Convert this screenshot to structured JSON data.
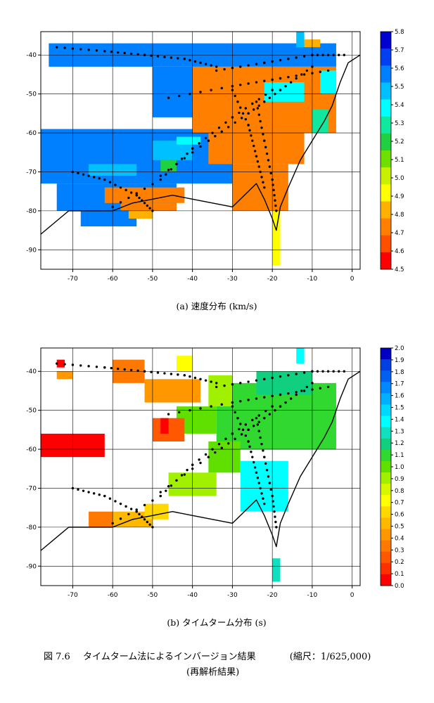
{
  "chart_data": [
    {
      "type": "heatmap",
      "id": "a",
      "caption": "(a)  速度分布  (km/s)",
      "x_ticks": [
        -70,
        -60,
        -50,
        -40,
        -30,
        -20,
        -10,
        0
      ],
      "y_ticks": [
        -40,
        -50,
        -60,
        -70,
        -80,
        -90
      ],
      "xlim": [
        -78,
        2
      ],
      "ylim": [
        -95,
        -34
      ],
      "grid": true,
      "colorbar": {
        "values": [
          4.5,
          4.6,
          4.7,
          4.8,
          4.9,
          5.0,
          5.1,
          5.2,
          5.3,
          5.4,
          5.5,
          5.6,
          5.7,
          5.8
        ],
        "labels": [
          "5.8",
          "5.7",
          "5.6",
          "5.5",
          "5.4",
          "5.3",
          "5.2",
          "5.1",
          "5.0",
          "4.9",
          "4.8",
          "4.7",
          "4.6",
          "4.5"
        ],
        "colors": [
          "#ff0000",
          "#ff5000",
          "#ff8000",
          "#ffb000",
          "#ffff00",
          "#c8f000",
          "#6ee000",
          "#20d040",
          "#10e8a0",
          "#00ffff",
          "#00c0ff",
          "#0080ff",
          "#0040f0",
          "#0000d0"
        ]
      },
      "regions": [
        {
          "value": 5.6,
          "x0": -76,
          "x1": -4,
          "y0": -43,
          "y1": -37
        },
        {
          "value": 5.6,
          "x0": -50,
          "x1": -28,
          "y0": -56,
          "y1": -43
        },
        {
          "value": 5.6,
          "x0": -78,
          "x1": -30,
          "y0": -73,
          "y1": -59
        },
        {
          "value": 5.6,
          "x0": -74,
          "x1": -44,
          "y0": -80,
          "y1": -73
        },
        {
          "value": 5.6,
          "x0": -68,
          "x1": -54,
          "y0": -84,
          "y1": -80
        },
        {
          "value": 5.5,
          "x0": -66,
          "x1": -54,
          "y0": -71,
          "y1": -68
        },
        {
          "value": 5.5,
          "x0": -50,
          "x1": -40,
          "y0": -67,
          "y1": -62
        },
        {
          "value": 5.4,
          "x0": -44,
          "x1": -38,
          "y0": -63,
          "y1": -61
        },
        {
          "value": 5.2,
          "x0": -38,
          "x1": -34,
          "y0": -55,
          "y1": -51
        },
        {
          "value": 5.2,
          "x0": -48,
          "x1": -44,
          "y0": -70,
          "y1": -67
        },
        {
          "value": 4.7,
          "x0": -40,
          "x1": -4,
          "y0": -60,
          "y1": -43
        },
        {
          "value": 4.7,
          "x0": -36,
          "x1": -12,
          "y0": -68,
          "y1": -60
        },
        {
          "value": 4.7,
          "x0": -30,
          "x1": -16,
          "y0": -80,
          "y1": -68
        },
        {
          "value": 4.7,
          "x0": -62,
          "x1": -42,
          "y0": -78,
          "y1": -74
        },
        {
          "value": 4.7,
          "x0": -58,
          "x1": -44,
          "y0": -80,
          "y1": -78
        },
        {
          "value": 4.8,
          "x0": -56,
          "x1": -50,
          "y0": -82,
          "y1": -80
        },
        {
          "value": 5.4,
          "x0": -22,
          "x1": -12,
          "y0": -52,
          "y1": -47
        },
        {
          "value": 5.3,
          "x0": -10,
          "x1": -6,
          "y0": -60,
          "y1": -54
        },
        {
          "value": 5.4,
          "x0": -8,
          "x1": -4,
          "y0": -50,
          "y1": -44
        },
        {
          "value": 4.8,
          "x0": -12,
          "x1": -8,
          "y0": -38,
          "y1": -36
        },
        {
          "value": 5.5,
          "x0": -14,
          "x1": -12,
          "y0": -38,
          "y1": -34
        },
        {
          "value": 4.9,
          "x0": -20,
          "x1": -18,
          "y0": -94,
          "y1": -80
        }
      ]
    },
    {
      "type": "heatmap",
      "id": "b",
      "caption": "(b)  タイムターム分布  (s)",
      "x_ticks": [
        -70,
        -60,
        -50,
        -40,
        -30,
        -20,
        -10,
        0
      ],
      "y_ticks": [
        -40,
        -50,
        -60,
        -70,
        -80,
        -90
      ],
      "xlim": [
        -78,
        2
      ],
      "ylim": [
        -95,
        -34
      ],
      "grid": true,
      "colorbar": {
        "values": [
          0.0,
          0.1,
          0.2,
          0.3,
          0.4,
          0.5,
          0.6,
          0.7,
          0.8,
          0.9,
          1.0,
          1.1,
          1.2,
          1.3,
          1.4,
          1.5,
          1.6,
          1.7,
          1.8,
          1.9,
          2.0
        ],
        "labels": [
          "2.0",
          "1.9",
          "1.8",
          "1.7",
          "1.6",
          "1.5",
          "1.4",
          "1.3",
          "1.2",
          "1.1",
          "1.0",
          "0.9",
          "0.8",
          "0.7",
          "0.6",
          "0.5",
          "0.4",
          "0.3",
          "0.2",
          "0.1",
          "0.0"
        ],
        "colors": [
          "#ff0000",
          "#ff3000",
          "#ff5800",
          "#ff7800",
          "#ff9800",
          "#ffb800",
          "#ffd800",
          "#ffff00",
          "#d8f800",
          "#a0f000",
          "#60e000",
          "#30d830",
          "#10d080",
          "#10e0c0",
          "#00ffff",
          "#00d8ff",
          "#00b0ff",
          "#0088ff",
          "#0060f0",
          "#0040e0",
          "#0000c0"
        ]
      },
      "regions": [
        {
          "value": 1.1,
          "x0": -34,
          "x1": -4,
          "y0": -60,
          "y1": -43
        },
        {
          "value": 1.0,
          "x0": -44,
          "x1": -34,
          "y0": -56,
          "y1": -49
        },
        {
          "value": 0.9,
          "x0": -36,
          "x1": -30,
          "y0": -49,
          "y1": -41
        },
        {
          "value": 1.2,
          "x0": -24,
          "x1": -10,
          "y0": -46,
          "y1": -40
        },
        {
          "value": 1.4,
          "x0": -28,
          "x1": -16,
          "y0": -76,
          "y1": -63
        },
        {
          "value": 1.0,
          "x0": -36,
          "x1": -28,
          "y0": -66,
          "y1": -58
        },
        {
          "value": 0.9,
          "x0": -46,
          "x1": -34,
          "y0": -72,
          "y1": -66
        },
        {
          "value": 0.3,
          "x0": -60,
          "x1": -52,
          "y0": -43,
          "y1": -37
        },
        {
          "value": 0.4,
          "x0": -52,
          "x1": -38,
          "y0": -48,
          "y1": -42
        },
        {
          "value": 0.0,
          "x0": -78,
          "x1": -62,
          "y0": -62,
          "y1": -56
        },
        {
          "value": 0.2,
          "x0": -50,
          "x1": -42,
          "y0": -58,
          "y1": -52
        },
        {
          "value": 0.0,
          "x0": -48,
          "x1": -46,
          "y0": -56,
          "y1": -52
        },
        {
          "value": 0.5,
          "x0": -60,
          "x1": -50,
          "y0": -80,
          "y1": -76
        },
        {
          "value": 0.6,
          "x0": -52,
          "x1": -46,
          "y0": -78,
          "y1": -74
        },
        {
          "value": 0.3,
          "x0": -66,
          "x1": -60,
          "y0": -80,
          "y1": -76
        },
        {
          "value": 0.7,
          "x0": -44,
          "x1": -40,
          "y0": -40,
          "y1": -36
        },
        {
          "value": 0.0,
          "x0": -74,
          "x1": -72,
          "y0": -39,
          "y1": -37
        },
        {
          "value": 0.4,
          "x0": -74,
          "x1": -70,
          "y0": -42,
          "y1": -40
        },
        {
          "value": 1.4,
          "x0": -14,
          "x1": -12,
          "y0": -38,
          "y1": -34
        },
        {
          "value": 1.3,
          "x0": -20,
          "x1": -18,
          "y0": -94,
          "y1": -88
        }
      ]
    }
  ],
  "figure": {
    "label": "図 7.6",
    "title": "タイムターム法によるインバージョン結果",
    "scale": "(縮尺：1/625,000)",
    "subtitle": "(再解析結果)"
  }
}
